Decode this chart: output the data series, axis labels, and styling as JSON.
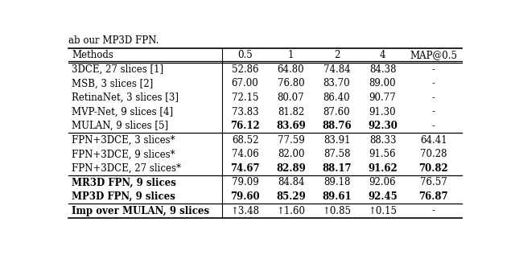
{
  "col_headers": [
    "Methods",
    "0.5",
    "1",
    "2",
    "4",
    "MAP@0.5"
  ],
  "rows": [
    {
      "method": "3DCE, 27 slices [1]",
      "values": [
        "52.86",
        "64.80",
        "74.84",
        "84.38",
        "-"
      ],
      "bold_method": false,
      "bold_values": [
        false,
        false,
        false,
        false,
        false
      ]
    },
    {
      "method": "MSB, 3 slices [2]",
      "values": [
        "67.00",
        "76.80",
        "83.70",
        "89.00",
        "-"
      ],
      "bold_method": false,
      "bold_values": [
        false,
        false,
        false,
        false,
        false
      ]
    },
    {
      "method": "RetinaNet, 3 slices [3]",
      "values": [
        "72.15",
        "80.07",
        "86.40",
        "90.77",
        "-"
      ],
      "bold_method": false,
      "bold_values": [
        false,
        false,
        false,
        false,
        false
      ]
    },
    {
      "method": "MVP-Net, 9 slices [4]",
      "values": [
        "73.83",
        "81.82",
        "87.60",
        "91.30",
        "-"
      ],
      "bold_method": false,
      "bold_values": [
        false,
        false,
        false,
        false,
        false
      ]
    },
    {
      "method": "MULAN, 9 slices [5]",
      "values": [
        "76.12",
        "83.69",
        "88.76",
        "92.30",
        "-"
      ],
      "bold_method": false,
      "bold_values": [
        true,
        true,
        true,
        true,
        false
      ]
    },
    {
      "method": "FPN+3DCE, 3 slices*",
      "values": [
        "68.52",
        "77.59",
        "83.91",
        "88.33",
        "64.41"
      ],
      "bold_method": false,
      "bold_values": [
        false,
        false,
        false,
        false,
        false
      ]
    },
    {
      "method": "FPN+3DCE, 9 slices*",
      "values": [
        "74.06",
        "82.00",
        "87.58",
        "91.56",
        "70.28"
      ],
      "bold_method": false,
      "bold_values": [
        false,
        false,
        false,
        false,
        false
      ]
    },
    {
      "method": "FPN+3DCE, 27 slices*",
      "values": [
        "74.67",
        "82.89",
        "88.17",
        "91.62",
        "70.82"
      ],
      "bold_method": false,
      "bold_values": [
        true,
        true,
        true,
        true,
        true
      ]
    },
    {
      "method": "MR3D FPN, 9 slices",
      "values": [
        "79.09",
        "84.84",
        "89.18",
        "92.06",
        "76.57"
      ],
      "bold_method": true,
      "bold_values": [
        false,
        false,
        false,
        false,
        false
      ]
    },
    {
      "method": "MP3D FPN, 9 slices",
      "values": [
        "79.60",
        "85.29",
        "89.61",
        "92.45",
        "76.87"
      ],
      "bold_method": true,
      "bold_values": [
        true,
        true,
        true,
        true,
        true
      ]
    },
    {
      "method": "Imp over MULAN, 9 slices",
      "values": [
        "↑3.48",
        "↑1.60",
        "↑0.85",
        "↑0.15",
        "-"
      ],
      "bold_method": true,
      "bold_values": [
        false,
        false,
        false,
        false,
        false
      ]
    }
  ],
  "section_breaks_after": [
    4,
    7,
    9
  ],
  "top_text": "ab our MP3D FPN.",
  "bg_color": "white",
  "font_size": 8.5,
  "header_font_size": 8.5
}
